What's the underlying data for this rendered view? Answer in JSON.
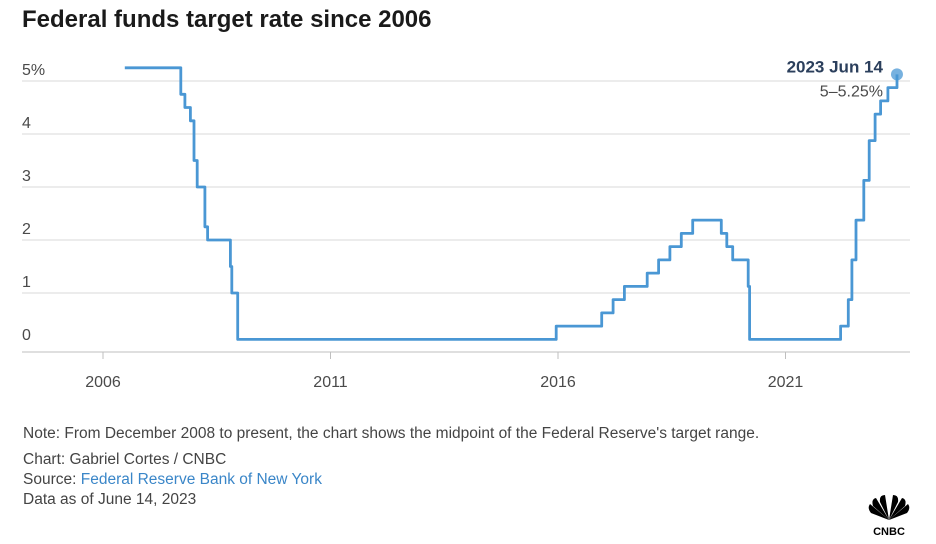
{
  "title": "Federal funds target rate since 2006",
  "footer": {
    "note": "Note: From December 2008 to present, the chart shows the midpoint of the Federal Reserve's target range.",
    "credit": "Chart: Gabriel Cortes / CNBC",
    "source_prefix": "Source: ",
    "source_name": "Federal Reserve Bank of New York",
    "data_as_of": "Data as of June 14, 2023"
  },
  "logo": {
    "text": "CNBC",
    "icon": "peacock-logo-icon"
  },
  "colors": {
    "line": "#4a97d4",
    "grid": "#d9d9d9",
    "axis": "#bfbfbf",
    "annot_date": "#2b3f5c"
  },
  "chart_data": {
    "type": "line",
    "title": "Federal funds target rate since 2006",
    "xlabel": "",
    "ylabel": "",
    "xlim": [
      2006.0,
      2024.3
    ],
    "ylim": [
      0,
      5.25
    ],
    "x_ticks": [
      2006,
      2011,
      2016,
      2021
    ],
    "x_tick_labels": [
      "2006",
      "2011",
      "2016",
      "2021"
    ],
    "y_ticks": [
      0,
      1,
      2,
      3,
      4,
      5
    ],
    "y_tick_labels": [
      "0",
      "1",
      "2",
      "3",
      "4",
      "5%"
    ],
    "grid": true,
    "step": true,
    "series": [
      {
        "name": "",
        "x": [
          2006.48,
          2007.71,
          2007.8,
          2007.92,
          2008.0,
          2008.07,
          2008.24,
          2008.3,
          2008.33,
          2008.8,
          2008.83,
          2008.96,
          2015.96,
          2016.96,
          2017.21,
          2017.46,
          2017.96,
          2018.21,
          2018.46,
          2018.71,
          2018.96,
          2019.59,
          2019.71,
          2019.84,
          2020.18,
          2020.21,
          2022.21,
          2022.38,
          2022.46,
          2022.55,
          2022.72,
          2022.84,
          2022.97,
          2023.09,
          2023.25,
          2023.45
        ],
        "y": [
          5.25,
          4.75,
          4.5,
          4.25,
          3.5,
          3.0,
          2.25,
          2.0,
          2.0,
          1.5,
          1.0,
          0.125,
          0.375,
          0.625,
          0.875,
          1.125,
          1.375,
          1.625,
          1.875,
          2.125,
          2.375,
          2.125,
          1.875,
          1.625,
          1.125,
          0.125,
          0.375,
          0.875,
          1.625,
          2.375,
          3.125,
          3.875,
          4.375,
          4.625,
          4.875,
          5.125
        ]
      }
    ],
    "annotation": {
      "date": "2023 Jun 14",
      "value_label": "5–5.25%",
      "x": 2023.45,
      "y": 5.125
    }
  }
}
